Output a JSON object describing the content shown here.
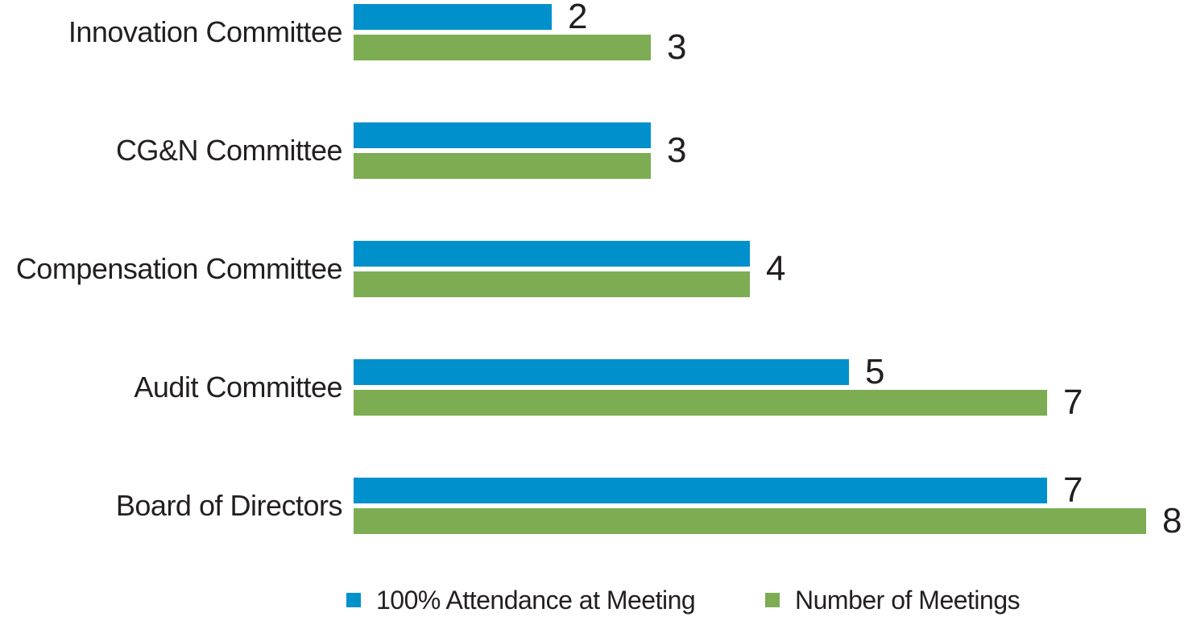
{
  "chart_data": {
    "type": "bar",
    "orientation": "horizontal",
    "title": "",
    "categories": [
      "Innovation Committee",
      "CG&N Committee",
      "Compensation Committee",
      "Audit Committee",
      "Board of Directors"
    ],
    "series": [
      {
        "name": "100% Attendance at Meeting",
        "color": "#0090CB",
        "values": [
          2,
          3,
          4,
          5,
          7
        ]
      },
      {
        "name": "Number of Meetings",
        "color": "#7CAD52",
        "values": [
          3,
          3,
          4,
          7,
          8
        ]
      }
    ],
    "value_range": [
      0,
      8
    ],
    "data_labels": "at-bar-end",
    "shared_label_when_equal": true,
    "grid": false,
    "axes_visible": false,
    "legend_position": "bottom",
    "background_color": "#FFFFFF",
    "text_color": "#231F20"
  },
  "legend": {
    "items": [
      {
        "label": "100% Attendance at Meeting",
        "color": "#0090CB"
      },
      {
        "label": "Number of Meetings",
        "color": "#7CAD52"
      }
    ]
  }
}
